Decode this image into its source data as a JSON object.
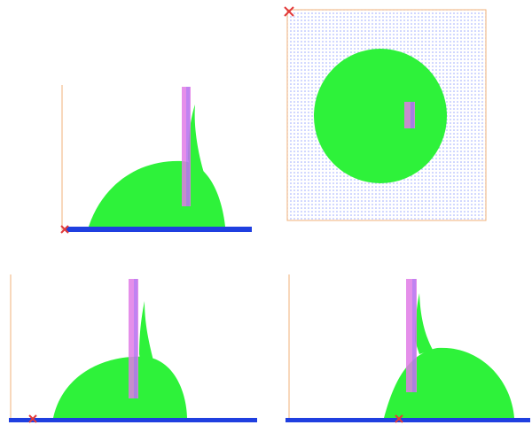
{
  "views": [
    {
      "id": "side-view-1",
      "projection": "side"
    },
    {
      "id": "top-view",
      "projection": "top"
    },
    {
      "id": "side-view-2",
      "projection": "side"
    },
    {
      "id": "side-view-3",
      "projection": "side"
    }
  ],
  "colors": {
    "particles": "#2ef23a",
    "floor": "#1f3fe0",
    "pillar": "#e07be6",
    "pillar_edge": "#7a6cff",
    "frame": "#f2b27a",
    "origin_marker": "#e23a3a",
    "top_grid": "#9aa8ff"
  }
}
